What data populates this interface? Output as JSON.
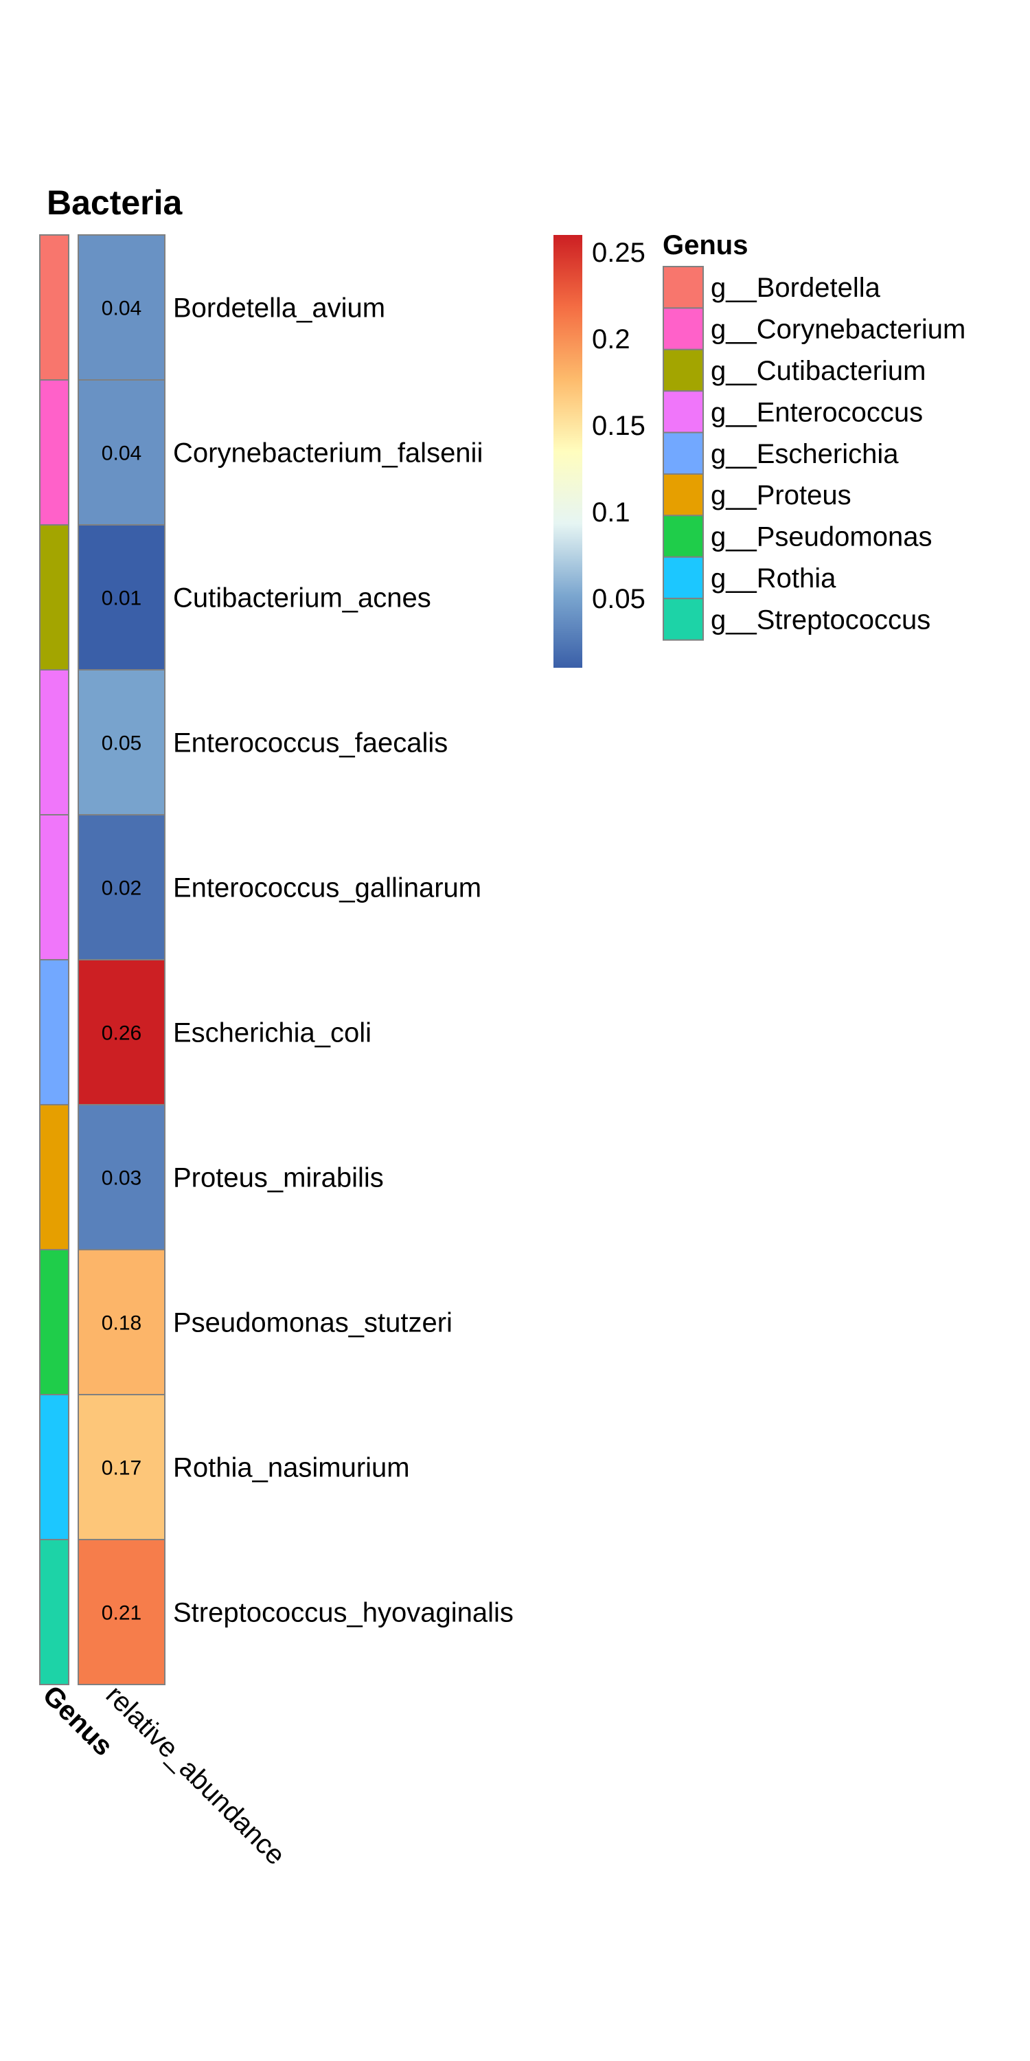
{
  "chart_data": {
    "type": "heatmap",
    "title": "Bacteria",
    "rows": [
      {
        "label": "Bordetella_avium",
        "genus": "g__Bordetella",
        "value": 0.04
      },
      {
        "label": "Corynebacterium_falsenii",
        "genus": "g__Corynebacterium",
        "value": 0.04
      },
      {
        "label": "Cutibacterium_acnes",
        "genus": "g__Cutibacterium",
        "value": 0.01
      },
      {
        "label": "Enterococcus_faecalis",
        "genus": "g__Enterococcus",
        "value": 0.05
      },
      {
        "label": "Enterococcus_gallinarum",
        "genus": "g__Enterococcus",
        "value": 0.02
      },
      {
        "label": "Escherichia_coli",
        "genus": "g__Escherichia",
        "value": 0.26
      },
      {
        "label": "Proteus_mirabilis",
        "genus": "g__Proteus",
        "value": 0.03
      },
      {
        "label": "Pseudomonas_stutzeri",
        "genus": "g__Pseudomonas",
        "value": 0.18
      },
      {
        "label": "Rothia_nasimurium",
        "genus": "g__Rothia",
        "value": 0.17
      },
      {
        "label": "Streptococcus_hyovaginalis",
        "genus": "g__Streptococcus",
        "value": 0.21
      }
    ],
    "value_labels": [
      "0.04",
      "0.04",
      "0.01",
      "0.05",
      "0.02",
      "0.26",
      "0.03",
      "0.18",
      "0.17",
      "0.21"
    ],
    "columns": [
      "Genus",
      "relative_abundance"
    ],
    "color_scale": {
      "range": [
        0.01,
        0.26
      ],
      "ticks": [
        0.05,
        0.1,
        0.15,
        0.2,
        0.25
      ],
      "tick_labels": [
        "0.05",
        "0.1",
        "0.15",
        "0.2",
        "0.25"
      ],
      "stops": [
        "#3A5FA8",
        "#7BA6CF",
        "#E6F5F3",
        "#FFFDBE",
        "#FDBB6C",
        "#F46D43",
        "#CC1F23"
      ]
    },
    "genus_legend": {
      "title": "Genus",
      "entries": [
        {
          "label": "g__Bordetella",
          "color": "#F8766D"
        },
        {
          "label": "g__Corynebacterium",
          "color": "#FF61C9"
        },
        {
          "label": "g__Cutibacterium",
          "color": "#A3A500"
        },
        {
          "label": "g__Enterococcus",
          "color": "#F076FA"
        },
        {
          "label": "g__Escherichia",
          "color": "#72A8FF"
        },
        {
          "label": "g__Proteus",
          "color": "#E69F00"
        },
        {
          "label": "g__Pseudomonas",
          "color": "#1FCD4A"
        },
        {
          "label": "g__Rothia",
          "color": "#1CC7FF"
        },
        {
          "label": "g__Streptococcus",
          "color": "#1DD3A7"
        }
      ]
    }
  }
}
